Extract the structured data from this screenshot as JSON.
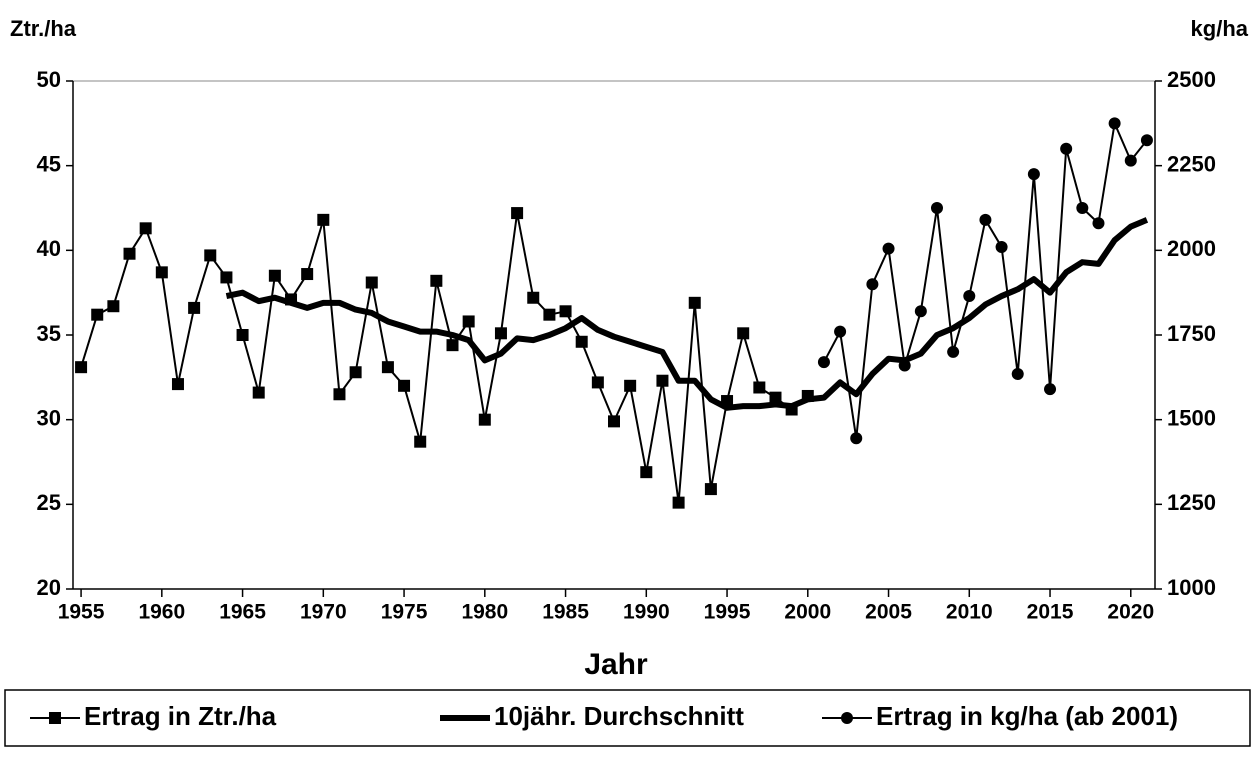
{
  "chart_data": {
    "type": "line",
    "y_label": "Ztr./ha",
    "y2_label": "kg/ha",
    "x_label": "Jahr",
    "xlim": [
      1954.5,
      2021.5
    ],
    "xticks": [
      1955,
      1960,
      1965,
      1970,
      1975,
      1980,
      1985,
      1990,
      1995,
      2000,
      2005,
      2010,
      2015,
      2020
    ],
    "ylim": [
      20,
      50
    ],
    "yticks": [
      20,
      25,
      30,
      35,
      40,
      45,
      50
    ],
    "y2lim": [
      1000,
      2500
    ],
    "y2ticks": [
      1000,
      1250,
      1500,
      1750,
      2000,
      2250,
      2500
    ],
    "legend": "bottom",
    "series": [
      {
        "name": "Ertrag in Ztr./ha",
        "color": "#000000",
        "marker": "square",
        "line_width": 2,
        "x": [
          1955,
          1956,
          1957,
          1958,
          1959,
          1960,
          1961,
          1962,
          1963,
          1964,
          1965,
          1966,
          1967,
          1968,
          1969,
          1970,
          1971,
          1972,
          1973,
          1974,
          1975,
          1976,
          1977,
          1978,
          1979,
          1980,
          1981,
          1982,
          1983,
          1984,
          1985,
          1986,
          1987,
          1988,
          1989,
          1990,
          1991,
          1992,
          1993,
          1994,
          1995,
          1996,
          1997,
          1998,
          1999,
          2000
        ],
        "values": [
          33.1,
          36.2,
          36.7,
          39.8,
          41.3,
          38.7,
          32.1,
          36.6,
          39.7,
          38.4,
          35.0,
          31.6,
          38.5,
          37.1,
          38.6,
          41.8,
          31.5,
          32.8,
          38.1,
          33.1,
          32.0,
          28.7,
          38.2,
          34.4,
          35.8,
          30.0,
          35.1,
          42.2,
          37.2,
          36.2,
          36.4,
          34.6,
          32.2,
          29.9,
          32.0,
          26.9,
          32.3,
          25.1,
          36.9,
          25.9,
          31.1,
          35.1,
          31.9,
          31.3,
          30.6,
          31.4
        ]
      },
      {
        "name": "10jähr. Durchschnitt",
        "color": "#000000",
        "marker": "none",
        "line_width": 6,
        "x": [
          1964,
          1965,
          1966,
          1967,
          1968,
          1969,
          1970,
          1971,
          1972,
          1973,
          1974,
          1975,
          1976,
          1977,
          1978,
          1979,
          1980,
          1981,
          1982,
          1983,
          1984,
          1985,
          1986,
          1987,
          1988,
          1989,
          1990,
          1991,
          1992,
          1993,
          1994,
          1995,
          1996,
          1997,
          1998,
          1999,
          2000,
          2001,
          2002,
          2003,
          2004,
          2005,
          2006,
          2007,
          2008,
          2009,
          2010,
          2011,
          2012,
          2013,
          2014,
          2015,
          2016,
          2017,
          2018,
          2019,
          2020,
          2021
        ],
        "values": [
          37.3,
          37.5,
          37.0,
          37.2,
          36.9,
          36.6,
          36.9,
          36.9,
          36.5,
          36.3,
          35.8,
          35.5,
          35.2,
          35.2,
          35.0,
          34.7,
          33.5,
          33.9,
          34.8,
          34.7,
          35.0,
          35.4,
          36.0,
          35.3,
          34.9,
          34.6,
          34.3,
          34.0,
          32.3,
          32.3,
          31.2,
          30.7,
          30.8,
          30.8,
          30.9,
          30.8,
          31.2,
          31.3,
          32.2,
          31.5,
          32.7,
          33.6,
          33.5,
          33.9,
          35.0,
          35.4,
          36.0,
          36.8,
          37.3,
          37.7,
          38.3,
          37.5,
          38.7,
          39.3,
          39.2,
          40.6,
          41.4,
          41.8
        ]
      },
      {
        "name": "Ertrag in kg/ha (ab 2001)",
        "color": "#000000",
        "marker": "circle",
        "line_width": 2,
        "axis": "y2",
        "x": [
          2001,
          2002,
          2003,
          2004,
          2005,
          2006,
          2007,
          2008,
          2009,
          2010,
          2011,
          2012,
          2013,
          2014,
          2015,
          2016,
          2017,
          2018,
          2019,
          2020,
          2021
        ],
        "values": [
          1670,
          1760,
          1445,
          1900,
          2005,
          1660,
          1820,
          2125,
          1700,
          1865,
          2090,
          2010,
          1635,
          2225,
          1590,
          2300,
          2125,
          2080,
          2375,
          2265,
          2325
        ]
      }
    ]
  }
}
